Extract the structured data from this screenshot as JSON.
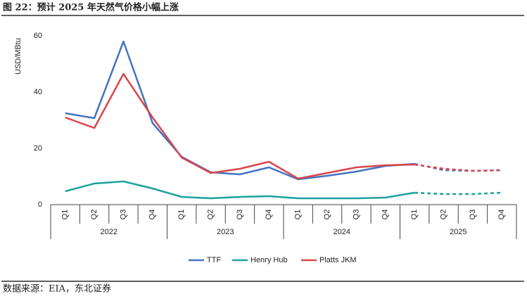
{
  "header": {
    "title": "图 22：预计 2025 年天然气价格小幅上涨"
  },
  "chart_data": {
    "type": "line",
    "y_label": "USD/MBtu",
    "categories": [
      "Q1",
      "Q2",
      "Q3",
      "Q4",
      "Q1",
      "Q2",
      "Q3",
      "Q4",
      "Q1",
      "Q2",
      "Q3",
      "Q4",
      "Q1",
      "Q2",
      "Q3",
      "Q4"
    ],
    "groups": [
      {
        "label": "2022",
        "span": 4
      },
      {
        "label": "2023",
        "span": 4
      },
      {
        "label": "2024",
        "span": 4
      },
      {
        "label": "2025",
        "span": 4
      }
    ],
    "forecast_start": 12,
    "series": [
      {
        "name": "TTF",
        "color": "#4472c4",
        "values": [
          32.5,
          30.75,
          58,
          29,
          17,
          11.5,
          10.75,
          13.25,
          9,
          10.25,
          11.75,
          13.75,
          14.5,
          12.25,
          12,
          12.25
        ]
      },
      {
        "name": "Henry Hub",
        "color": "#1aa39b",
        "values": [
          4.75,
          7.5,
          8.25,
          5.75,
          2.75,
          2.25,
          2.75,
          3,
          2.25,
          2.25,
          2.25,
          2.5,
          4.25,
          3.75,
          3.75,
          4.25
        ]
      },
      {
        "name": "Platts JKM",
        "color": "#d9464a",
        "values": [
          31,
          27.25,
          46.5,
          31,
          16.75,
          11.25,
          12.75,
          15.25,
          9.25,
          11.25,
          13.25,
          14,
          14.25,
          12.75,
          12,
          12.25
        ]
      }
    ],
    "ylim": [
      0,
      60
    ],
    "yticks": [
      0,
      20,
      40,
      60
    ],
    "grid": false
  },
  "footer": {
    "source": "数据来源：EIA，东北证券"
  }
}
